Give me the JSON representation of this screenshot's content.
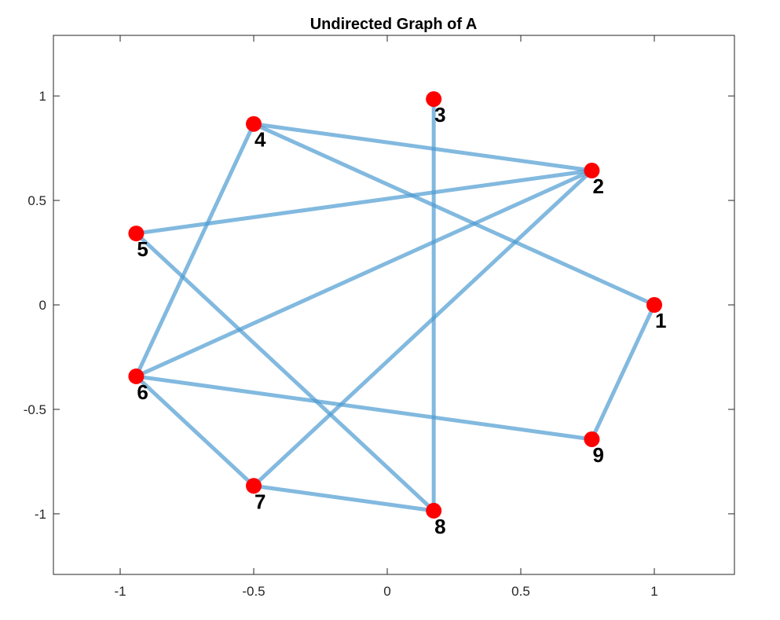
{
  "chart_data": {
    "type": "graph",
    "title": "Undirected Graph of A",
    "xlabel": "",
    "ylabel": "",
    "xlim": [
      -1.25,
      1.3
    ],
    "ylim": [
      -1.29,
      1.29
    ],
    "xticks": [
      -1,
      -0.5,
      0,
      0.5,
      1
    ],
    "yticks": [
      1,
      0.5,
      0,
      -0.5,
      -1
    ],
    "xtick_labels": [
      "-1",
      "-0.5",
      "0",
      "0.5",
      "1"
    ],
    "ytick_labels": [
      "1",
      "0.5",
      "0",
      "-0.5",
      "-1"
    ],
    "nodes": [
      {
        "id": "1",
        "x": 1.0,
        "y": 0.0
      },
      {
        "id": "2",
        "x": 0.766,
        "y": 0.643
      },
      {
        "id": "3",
        "x": 0.174,
        "y": 0.985
      },
      {
        "id": "4",
        "x": -0.5,
        "y": 0.866
      },
      {
        "id": "5",
        "x": -0.94,
        "y": 0.342
      },
      {
        "id": "6",
        "x": -0.94,
        "y": -0.342
      },
      {
        "id": "7",
        "x": -0.5,
        "y": -0.866
      },
      {
        "id": "8",
        "x": 0.174,
        "y": -0.985
      },
      {
        "id": "9",
        "x": 0.766,
        "y": -0.643
      }
    ],
    "edges": [
      [
        "1",
        "4"
      ],
      [
        "1",
        "9"
      ],
      [
        "2",
        "4"
      ],
      [
        "2",
        "5"
      ],
      [
        "2",
        "6"
      ],
      [
        "2",
        "7"
      ],
      [
        "3",
        "8"
      ],
      [
        "4",
        "6"
      ],
      [
        "5",
        "8"
      ],
      [
        "6",
        "7"
      ],
      [
        "6",
        "9"
      ],
      [
        "7",
        "8"
      ]
    ],
    "colors": {
      "edge": "#4d9bd1",
      "node": "#ff0000",
      "axis": "#262626"
    },
    "grid": false
  }
}
